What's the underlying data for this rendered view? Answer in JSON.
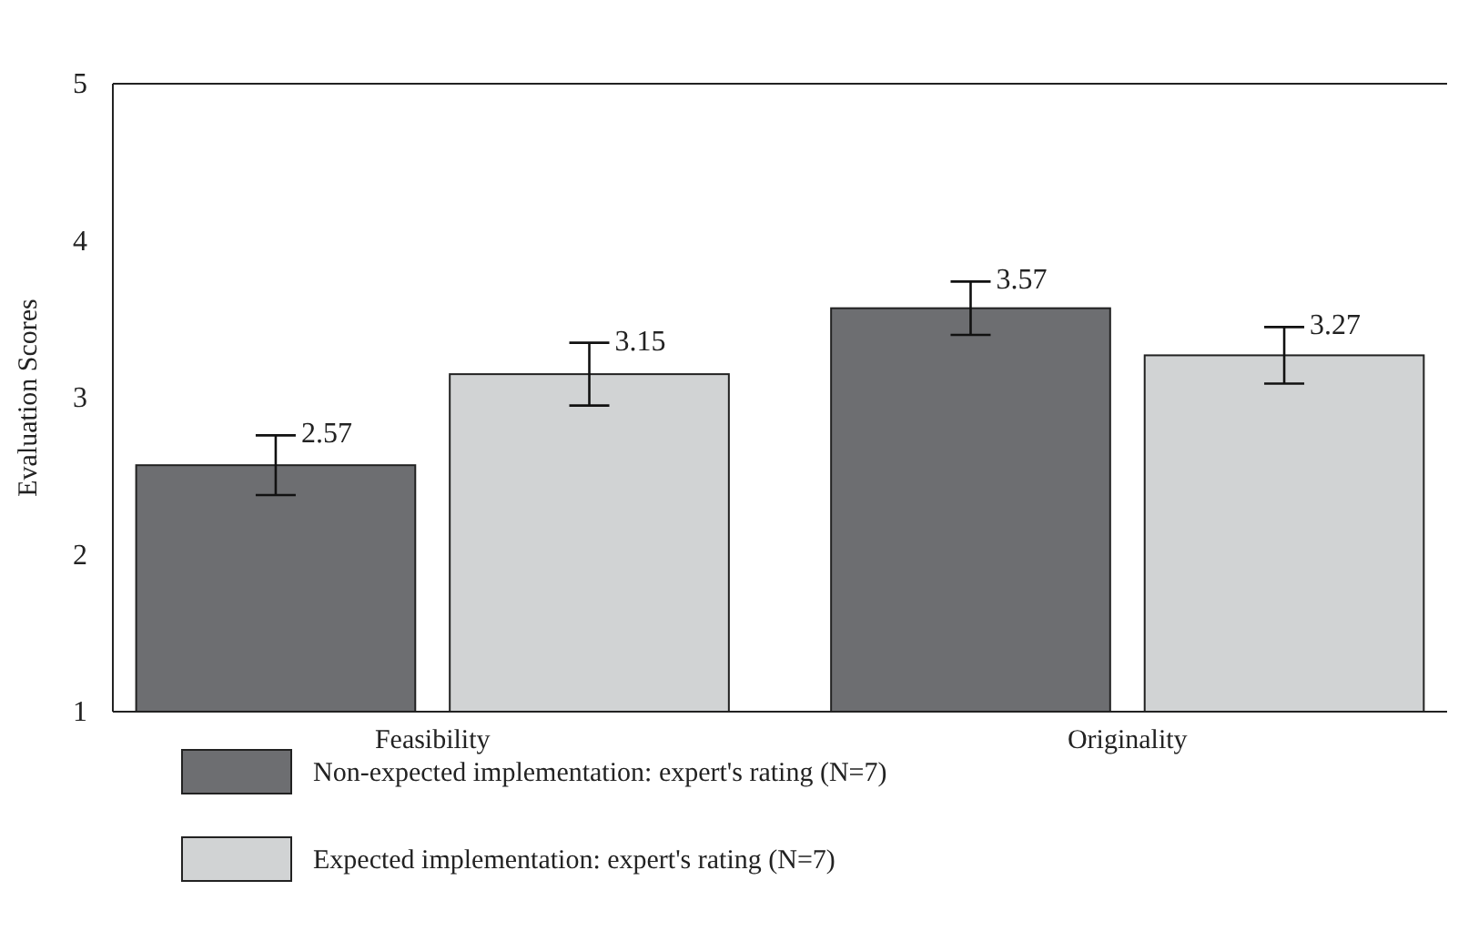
{
  "chart_data": {
    "type": "bar",
    "ylabel": "Evaluation Scores",
    "categories": [
      "Feasibility",
      "Originality"
    ],
    "series": [
      {
        "name": "Non-expected implementation: expert's rating (N=7)",
        "color": "#6d6e71",
        "values": [
          2.57,
          3.57
        ],
        "errors": [
          0.19,
          0.17
        ]
      },
      {
        "name": "Expected implementation: expert's rating (N=7)",
        "color": "#d1d3d4",
        "values": [
          3.15,
          3.27
        ],
        "errors": [
          0.2,
          0.18
        ]
      }
    ],
    "ylim": [
      1,
      5
    ],
    "yticks": [
      1,
      2,
      3,
      4,
      5
    ],
    "data_labels": true,
    "legend": "bottom",
    "grid": false
  }
}
